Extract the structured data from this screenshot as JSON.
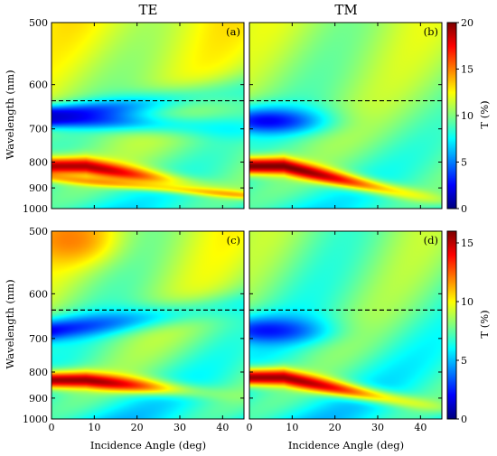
{
  "chart_data": {
    "type": "heatmap",
    "column_titles": [
      "TE",
      "TM"
    ],
    "xlabel": "Incidence Angle (deg)",
    "ylabel": "Wavelength (nm)",
    "xlim": [
      0,
      45
    ],
    "ylim": [
      500,
      1000
    ],
    "y_scale": "reciprocal",
    "xticks": [
      0,
      10,
      20,
      30,
      40
    ],
    "yticks": [
      500,
      600,
      700,
      800,
      900,
      1000
    ],
    "reference_line_wavelength": 633,
    "colormap": "jet",
    "panels": [
      {
        "label": "(a)",
        "polarization": "TE",
        "row": 0,
        "features": {
          "background_short_wavelength": 12,
          "background_long_wavelength": 8,
          "minimum": {
            "wavelength": 670,
            "angle": 0,
            "value": 1.5,
            "branches": [
              {
                "wavelength_at_45": 610
              },
              {
                "wavelength_at_45": 700
              }
            ]
          },
          "maximum": {
            "wavelength": 815,
            "angle": 8,
            "value": 19,
            "end_angle": 32,
            "end_wavelength": 880
          },
          "bright_band": {
            "wavelength_at_0": 860,
            "wavelength_at_45": 935
          }
        }
      },
      {
        "label": "(b)",
        "polarization": "TM",
        "row": 0,
        "features": {
          "background_short_wavelength": 11,
          "background_long_wavelength": 8,
          "minimum": {
            "wavelength": 680,
            "angle": 4,
            "value": 2,
            "end_angle": 18
          },
          "maximum": {
            "wavelength": 815,
            "angle": 8,
            "value": 20,
            "end_angle": 38,
            "end_wavelength": 930
          }
        }
      },
      {
        "label": "(c)",
        "polarization": "TE",
        "row": 1,
        "features": {
          "background_short_wavelength": 9,
          "background_long_wavelength": 6,
          "corner_maximum": {
            "wavelength": 510,
            "angle": 4,
            "value": 12
          },
          "minimum": {
            "wavelength": 680,
            "angle": 0,
            "value": 1.5,
            "end_wavelength_at_45": 620
          },
          "maximum": {
            "wavelength": 830,
            "angle": 8,
            "value": 15.5,
            "end_angle": 32,
            "end_wavelength": 870
          }
        }
      },
      {
        "label": "(d)",
        "polarization": "TM",
        "row": 1,
        "features": {
          "background_short_wavelength": 8,
          "background_long_wavelength": 6,
          "minimum": {
            "wavelength": 680,
            "angle": 4,
            "value": 2,
            "end_angle": 18
          },
          "maximum": {
            "wavelength": 820,
            "angle": 8,
            "value": 15.5,
            "end_angle": 38,
            "end_wavelength": 920
          }
        }
      }
    ],
    "colorbars": [
      {
        "row": 0,
        "label": "T (%)",
        "range": [
          0,
          20
        ],
        "ticks": [
          0,
          5,
          10,
          15,
          20
        ]
      },
      {
        "row": 1,
        "label": "T (%)",
        "range": [
          0,
          16
        ],
        "ticks": [
          0,
          5,
          10,
          15
        ]
      }
    ]
  }
}
